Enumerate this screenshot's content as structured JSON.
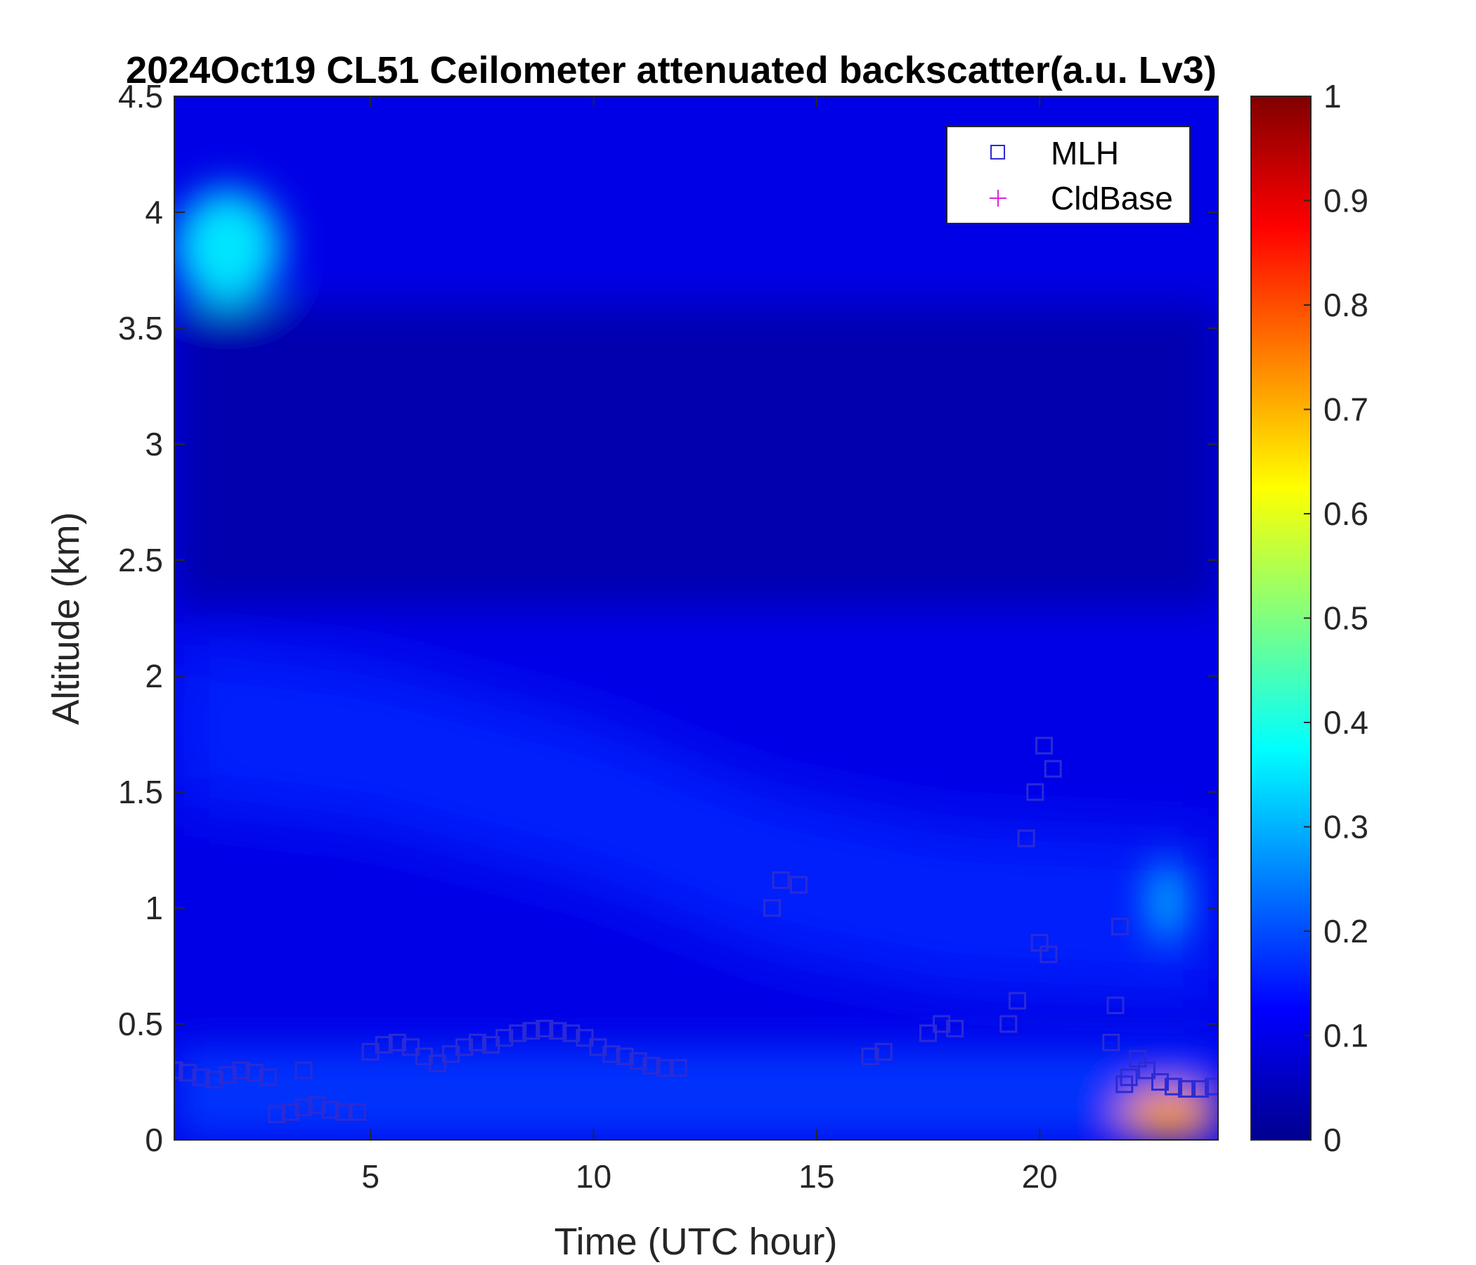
{
  "chart_data": {
    "type": "heatmap",
    "title": "2024Oct19 CL51 Ceilometer attenuated backscatter(a.u. Lv3)",
    "xlabel": "Time (UTC hour)",
    "ylabel": "Altitude (km)",
    "xlim": [
      0.6,
      24
    ],
    "ylim": [
      0,
      4.5
    ],
    "x_ticks": [
      5,
      10,
      15,
      20
    ],
    "x_tick_labels": [
      "5",
      "10",
      "15",
      "20"
    ],
    "y_ticks": [
      0,
      0.5,
      1,
      1.5,
      2,
      2.5,
      3,
      3.5,
      4,
      4.5
    ],
    "y_tick_labels": [
      "0",
      "0.5",
      "1",
      "1.5",
      "2",
      "2.5",
      "3",
      "3.5",
      "4",
      "4.5"
    ],
    "colorbar": {
      "colormap": "jet",
      "range": [
        0,
        1
      ],
      "ticks": [
        0,
        0.1,
        0.2,
        0.3,
        0.4,
        0.5,
        0.6,
        0.7,
        0.8,
        0.9,
        1
      ],
      "tick_labels": [
        "0",
        "0.1",
        "0.2",
        "0.3",
        "0.4",
        "0.5",
        "0.6",
        "0.7",
        "0.8",
        "0.9",
        "1"
      ]
    },
    "legend": {
      "placement": "top-right",
      "entries": [
        {
          "label": "MLH",
          "marker": "square",
          "color": "#2b2bd6"
        },
        {
          "label": "CldBase",
          "marker": "plus",
          "color": "#e020e0"
        }
      ]
    },
    "background_level": 0.1,
    "features": [
      {
        "name": "elevated aerosol layer",
        "x_range": [
          0.6,
          24
        ],
        "center_alt": [
          [
            0.6,
            1.8
          ],
          [
            5,
            1.7
          ],
          [
            10,
            1.45
          ],
          [
            14,
            1.15
          ],
          [
            18,
            1.0
          ],
          [
            24,
            0.95
          ]
        ],
        "thickness": 0.7,
        "value": 0.16
      },
      {
        "name": "surface layer",
        "x_range": [
          0.6,
          24
        ],
        "alt_range": [
          0,
          0.4
        ],
        "value": 0.18
      },
      {
        "name": "upper plume",
        "x_range": [
          0.6,
          3.0
        ],
        "alt_range": [
          3.6,
          4.1
        ],
        "value": 0.35
      },
      {
        "name": "cloud patch",
        "x_range": [
          22.5,
          23.2
        ],
        "alt_range": [
          0.85,
          1.2
        ],
        "value": 0.33
      },
      {
        "name": "fog near ground",
        "x_range": [
          21.8,
          24
        ],
        "alt_range": [
          0,
          0.22
        ],
        "value": 0.72
      },
      {
        "name": "dark upper region",
        "x_range": [
          0.6,
          24
        ],
        "alt_range": [
          2.3,
          3.6
        ],
        "value": 0.04
      }
    ],
    "series": [
      {
        "name": "MLH",
        "marker": "square",
        "x": [
          0.6,
          0.9,
          1.2,
          1.5,
          1.8,
          2.1,
          2.4,
          2.7,
          2.9,
          3.2,
          3.5,
          3.8,
          4.1,
          4.4,
          4.7,
          5.0,
          5.3,
          5.6,
          5.9,
          6.2,
          6.5,
          6.8,
          7.1,
          7.4,
          7.7,
          8.0,
          8.3,
          8.6,
          8.9,
          9.2,
          9.5,
          9.8,
          10.1,
          10.4,
          10.7,
          11.0,
          11.3,
          11.6,
          11.9,
          3.5,
          14.0,
          14.2,
          14.6,
          16.2,
          16.5,
          17.5,
          17.8,
          18.1,
          19.3,
          19.5,
          19.7,
          19.9,
          20.1,
          20.3,
          20.0,
          20.2,
          21.6,
          21.7,
          21.8,
          21.9,
          22.0,
          22.2,
          22.4,
          22.7,
          23.0,
          23.3,
          23.6,
          23.9
        ],
        "y": [
          0.3,
          0.29,
          0.27,
          0.26,
          0.28,
          0.3,
          0.29,
          0.27,
          0.11,
          0.12,
          0.14,
          0.15,
          0.13,
          0.12,
          0.12,
          0.38,
          0.41,
          0.42,
          0.4,
          0.36,
          0.33,
          0.37,
          0.4,
          0.42,
          0.41,
          0.44,
          0.46,
          0.47,
          0.48,
          0.47,
          0.46,
          0.44,
          0.4,
          0.37,
          0.36,
          0.34,
          0.32,
          0.31,
          0.31,
          0.3,
          1.0,
          1.12,
          1.1,
          0.36,
          0.38,
          0.46,
          0.5,
          0.48,
          0.5,
          0.6,
          1.3,
          1.5,
          1.7,
          1.6,
          0.85,
          0.8,
          0.42,
          0.58,
          0.92,
          0.24,
          0.27,
          0.35,
          0.3,
          0.25,
          0.23,
          0.22,
          0.22,
          0.23
        ]
      },
      {
        "name": "CldBase",
        "marker": "plus",
        "x": [],
        "y": []
      }
    ]
  }
}
